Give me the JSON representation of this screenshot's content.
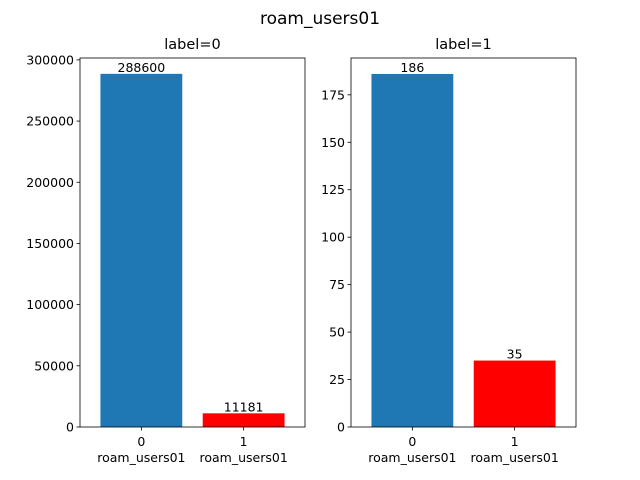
{
  "figure_title": "roam_users01",
  "chart_data": [
    {
      "type": "bar",
      "title": "label=0",
      "categories": [
        "0\nroam_users01",
        "1\nroam_users01"
      ],
      "category_lines": [
        [
          "0",
          "roam_users01"
        ],
        [
          "1",
          "roam_users01"
        ]
      ],
      "values": [
        288600,
        11181
      ],
      "data_labels": [
        "288600",
        "11181"
      ],
      "bar_colors": [
        "#1f77b4",
        "#ff0000"
      ],
      "ylim": [
        0,
        301539
      ],
      "yticks": [
        0,
        50000,
        100000,
        150000,
        200000,
        250000,
        300000
      ],
      "ytick_labels": [
        "0",
        "50000",
        "100000",
        "150000",
        "200000",
        "250000",
        "300000"
      ],
      "xlabel": "",
      "ylabel": "",
      "grid": false
    },
    {
      "type": "bar",
      "title": "label=1",
      "categories": [
        "0\nroam_users01",
        "1\nroam_users01"
      ],
      "category_lines": [
        [
          "0",
          "roam_users01"
        ],
        [
          "1",
          "roam_users01"
        ]
      ],
      "values": [
        186,
        35
      ],
      "data_labels": [
        "186",
        "35"
      ],
      "bar_colors": [
        "#1f77b4",
        "#ff0000"
      ],
      "ylim": [
        0,
        194.4
      ],
      "yticks": [
        0,
        25,
        50,
        75,
        100,
        125,
        150,
        175
      ],
      "ytick_labels": [
        "0",
        "25",
        "50",
        "75",
        "100",
        "125",
        "150",
        "175"
      ],
      "xlabel": "",
      "ylabel": "",
      "grid": false
    }
  ]
}
